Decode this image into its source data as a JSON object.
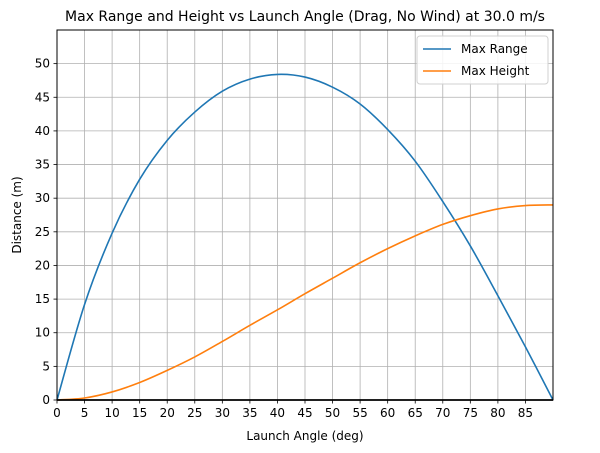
{
  "chart_data": {
    "type": "line",
    "title": "Max Range and Height vs Launch Angle (Drag, No Wind) at 30.0 m/s",
    "xlabel": "Launch Angle (deg)",
    "ylabel": "Distance (m)",
    "xlim": [
      0,
      90
    ],
    "ylim": [
      0,
      55
    ],
    "grid": true,
    "legend_position": "top-right",
    "x_ticks": [
      0,
      5,
      10,
      15,
      20,
      25,
      30,
      35,
      40,
      45,
      50,
      55,
      60,
      65,
      70,
      75,
      80,
      85
    ],
    "y_ticks": [
      0,
      5,
      10,
      15,
      20,
      25,
      30,
      35,
      40,
      45,
      50
    ],
    "x": [
      0,
      5,
      10,
      15,
      20,
      25,
      30,
      35,
      40,
      45,
      50,
      55,
      60,
      65,
      70,
      75,
      80,
      85,
      90
    ],
    "series": [
      {
        "name": "Max Range",
        "color": "#1f77b4",
        "values": [
          0,
          14.2,
          24.8,
          32.8,
          38.6,
          42.8,
          45.9,
          47.7,
          48.4,
          48.0,
          46.5,
          44.0,
          40.2,
          35.5,
          29.5,
          22.9,
          15.5,
          7.9,
          0
        ]
      },
      {
        "name": "Max Height",
        "color": "#ff7f0e",
        "values": [
          0,
          0.3,
          1.2,
          2.6,
          4.4,
          6.4,
          8.7,
          11.1,
          13.4,
          15.8,
          18.1,
          20.4,
          22.5,
          24.4,
          26.1,
          27.4,
          28.4,
          28.9,
          29.0
        ]
      }
    ]
  }
}
